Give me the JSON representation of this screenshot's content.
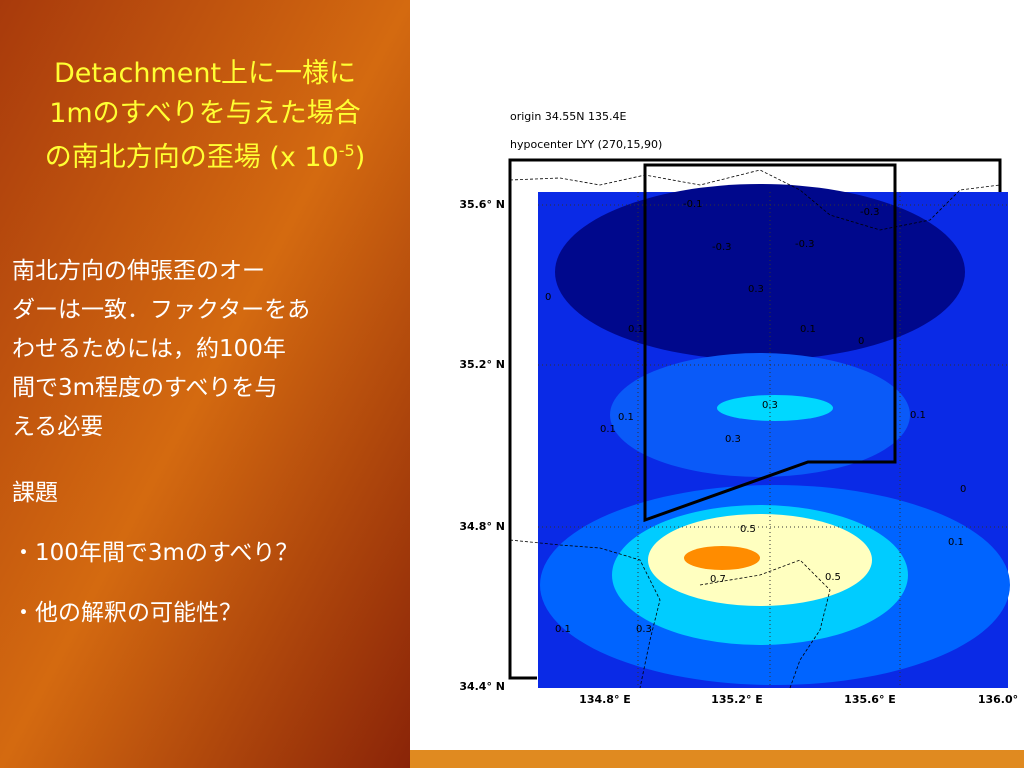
{
  "slide": {
    "title": {
      "lines": [
        "Detachment上に一様に",
        "1mのすべりを与えた場合",
        "の南北方向の歪場 (x 10"
      ],
      "superscript": "-5",
      "close": ")"
    },
    "body": [
      "南北方向の伸張歪のオー",
      "ダーは一致．ファクターをあ",
      "わせるためには，約100年",
      "間で3m程度のすべりを与",
      "える必要"
    ],
    "issues_heading": "課題",
    "issues": [
      "・100年間で3mのすべり？",
      "・他の解釈の可能性？"
    ]
  },
  "map": {
    "header": [
      "origin 34.55N 135.4E",
      "hypocenter LYY (270,15,90)"
    ],
    "y_labels": [
      "35.6° N",
      "35.2° N",
      "34.8° N",
      "34.4° N"
    ],
    "x_labels": [
      "134.8° E",
      "135.2° E",
      "135.6° E",
      "136.0°"
    ],
    "contour_labels": [
      "-0.1",
      "-0.3",
      "-0.3",
      "-0.3",
      "0",
      "0.1",
      "0",
      "0.1",
      "0.3",
      "0.3",
      "0.1",
      "0.1",
      "0.1",
      "0.3",
      "0.5",
      "0.7",
      "0.5",
      "0.3",
      "0.1",
      "0.1",
      "0"
    ]
  }
}
